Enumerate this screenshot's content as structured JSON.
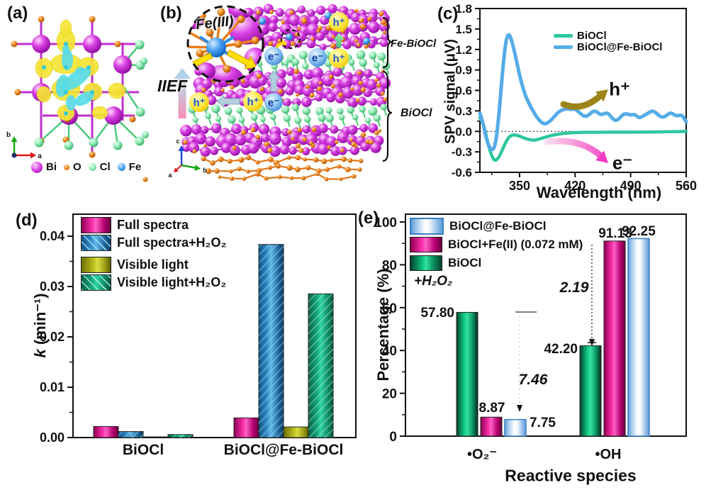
{
  "colors": {
    "bi": "#cc2fd2",
    "o": "#ee7d1a",
    "cl": "#8deab2",
    "fe": "#3f9df0",
    "iso_yellow": "#f4e434",
    "iso_cyan": "#59dbe8",
    "line_green": "#2ec79e",
    "line_blue": "#55ace8",
    "bar_magenta": "#e6007e",
    "bar_blue_hatched": "#2f85c0",
    "bar_olive": "#b9bd1c",
    "bar_teal_hatched": "#17a47c",
    "bar_green": "#10c983",
    "bar_bluewhite": "#5b9fd8"
  },
  "panel_a": {
    "label": "(a)",
    "legend": [
      {
        "name": "Bi"
      },
      {
        "name": "O"
      },
      {
        "name": "Cl"
      },
      {
        "name": "Fe"
      }
    ],
    "axes": {
      "up": "b",
      "right": "a"
    }
  },
  "panel_b": {
    "label": "(b)",
    "inset_label": "Fe(III)",
    "field_label": "IIEF",
    "layers": {
      "top": "Fe-BiOCl",
      "bottom": "BiOCl"
    },
    "carriers": {
      "hole": "h⁺",
      "electron": "e⁻"
    },
    "axes": {
      "up": "c",
      "right": "b",
      "depth": "a"
    }
  },
  "panel_c": {
    "label": "(c)",
    "annotations": {
      "hole": "h⁺",
      "electron": "e⁻"
    }
  },
  "panel_d": {
    "label": "(d)",
    "ylabel_italic": "k",
    "ylabel_rest": " (min⁻¹)"
  },
  "panel_e": {
    "label": "(e)",
    "note": "+H₂O₂",
    "ratio_o2": "7.46",
    "ratio_oh": "2.19"
  },
  "chart_data": [
    {
      "type": "line",
      "panel": "c",
      "xlabel": "Wavelength (nm)",
      "ylabel": "SPV signal (μV)",
      "xlim": [
        300,
        560
      ],
      "ylim": [
        -0.6,
        1.8
      ],
      "xticks": [
        350,
        420,
        490,
        560
      ],
      "yticks": [
        -0.6,
        -0.3,
        0.0,
        0.3,
        0.6,
        0.9,
        1.2,
        1.5,
        1.8
      ],
      "zero_line": true,
      "legend_position": "top-center-inside",
      "series": [
        {
          "name": "BiOCl",
          "color": "#2ec79e",
          "points": [
            [
              300,
              0.2
            ],
            [
              305,
              0.1
            ],
            [
              309,
              -0.12
            ],
            [
              313,
              -0.3
            ],
            [
              317,
              -0.41
            ],
            [
              320,
              -0.43
            ],
            [
              324,
              -0.38
            ],
            [
              328,
              -0.28
            ],
            [
              332,
              -0.17
            ],
            [
              336,
              -0.09
            ],
            [
              340,
              -0.055
            ],
            [
              344,
              -0.05
            ],
            [
              349,
              -0.065
            ],
            [
              354,
              -0.09
            ],
            [
              359,
              -0.11
            ],
            [
              364,
              -0.125
            ],
            [
              368,
              -0.13
            ],
            [
              373,
              -0.12
            ],
            [
              378,
              -0.1
            ],
            [
              384,
              -0.08
            ],
            [
              390,
              -0.06
            ],
            [
              397,
              -0.045
            ],
            [
              405,
              -0.03
            ],
            [
              413,
              -0.022
            ],
            [
              421,
              -0.017
            ],
            [
              430,
              -0.014
            ],
            [
              440,
              -0.013
            ],
            [
              455,
              -0.012
            ],
            [
              470,
              -0.012
            ],
            [
              485,
              -0.012
            ],
            [
              500,
              -0.011
            ],
            [
              515,
              -0.009
            ],
            [
              530,
              -0.007
            ],
            [
              545,
              -0.004
            ],
            [
              560,
              -0.002
            ]
          ]
        },
        {
          "name": "BiOCl@Fe-BiOCl",
          "color": "#55ace8",
          "points": [
            [
              300,
              0.27
            ],
            [
              304,
              0.12
            ],
            [
              307,
              -0.05
            ],
            [
              310,
              -0.18
            ],
            [
              313,
              -0.25
            ],
            [
              316,
              -0.27
            ],
            [
              318,
              -0.24
            ],
            [
              320,
              -0.15
            ],
            [
              322,
              0.02
            ],
            [
              324,
              0.25
            ],
            [
              326,
              0.52
            ],
            [
              328,
              0.8
            ],
            [
              330,
              1.05
            ],
            [
              332,
              1.25
            ],
            [
              334,
              1.38
            ],
            [
              336,
              1.42
            ],
            [
              338,
              1.4
            ],
            [
              340,
              1.33
            ],
            [
              343,
              1.2
            ],
            [
              346,
              1.04
            ],
            [
              349,
              0.88
            ],
            [
              352,
              0.73
            ],
            [
              355,
              0.61
            ],
            [
              358,
              0.51
            ],
            [
              361,
              0.43
            ],
            [
              364,
              0.36
            ],
            [
              367,
              0.3
            ],
            [
              370,
              0.24
            ],
            [
              373,
              0.19
            ],
            [
              376,
              0.15
            ],
            [
              379,
              0.12
            ],
            [
              382,
              0.11
            ],
            [
              385,
              0.12
            ],
            [
              388,
              0.15
            ],
            [
              391,
              0.18
            ],
            [
              394,
              0.22
            ],
            [
              397,
              0.26
            ],
            [
              400,
              0.29
            ],
            [
              403,
              0.31
            ],
            [
              406,
              0.32
            ],
            [
              409,
              0.33
            ],
            [
              412,
              0.33
            ],
            [
              415,
              0.32
            ],
            [
              418,
              0.33
            ],
            [
              421,
              0.32
            ],
            [
              424,
              0.29
            ],
            [
              427,
              0.26
            ],
            [
              430,
              0.23
            ],
            [
              433,
              0.22
            ],
            [
              436,
              0.23
            ],
            [
              439,
              0.26
            ],
            [
              442,
              0.29
            ],
            [
              445,
              0.3
            ],
            [
              448,
              0.28
            ],
            [
              451,
              0.25
            ],
            [
              454,
              0.25
            ],
            [
              457,
              0.26
            ],
            [
              460,
              0.27
            ],
            [
              463,
              0.25
            ],
            [
              466,
              0.2
            ],
            [
              469,
              0.17
            ],
            [
              472,
              0.16
            ],
            [
              475,
              0.18
            ],
            [
              478,
              0.22
            ],
            [
              481,
              0.25
            ],
            [
              484,
              0.26
            ],
            [
              487,
              0.25
            ],
            [
              490,
              0.24
            ],
            [
              493,
              0.25
            ],
            [
              496,
              0.24
            ],
            [
              499,
              0.21
            ],
            [
              502,
              0.2
            ],
            [
              505,
              0.22
            ],
            [
              508,
              0.24
            ],
            [
              511,
              0.26
            ],
            [
              514,
              0.28
            ],
            [
              517,
              0.3
            ],
            [
              520,
              0.29
            ],
            [
              523,
              0.26
            ],
            [
              526,
              0.23
            ],
            [
              529,
              0.21
            ],
            [
              532,
              0.21
            ],
            [
              535,
              0.23
            ],
            [
              538,
              0.26
            ],
            [
              541,
              0.27
            ],
            [
              544,
              0.25
            ],
            [
              547,
              0.23
            ],
            [
              550,
              0.23
            ],
            [
              553,
              0.24
            ],
            [
              556,
              0.22
            ],
            [
              558,
              0.18
            ],
            [
              560,
              0.14
            ]
          ]
        }
      ]
    },
    {
      "type": "bar",
      "panel": "d",
      "categories": [
        "BiOCl",
        "BiOCl@Fe-BiOCl"
      ],
      "ylabel": "k (min⁻¹)",
      "ylim": [
        0,
        0.044
      ],
      "yticks": [
        "0.00",
        "0.01",
        "0.02",
        "0.03",
        "0.04"
      ],
      "legend_position": "top-left-inside",
      "series": [
        {
          "name": "Full spectra",
          "style": "magenta",
          "hatched": false,
          "values": [
            0.0022,
            0.0039
          ]
        },
        {
          "name": "Full spectra+H₂O₂",
          "style": "blue",
          "hatched": true,
          "values": [
            0.0012,
            0.0383
          ]
        },
        {
          "name": "Visible light",
          "style": "olive",
          "hatched": false,
          "values": [
            0.0001,
            0.0021
          ]
        },
        {
          "name": "Visible light+H₂O₂",
          "style": "teal",
          "hatched": true,
          "values": [
            0.0006,
            0.0285
          ]
        }
      ]
    },
    {
      "type": "bar",
      "panel": "e",
      "categories": [
        "•O₂⁻",
        "•OH"
      ],
      "xlabel": "Reactive species",
      "ylabel": "Percentage (%)",
      "ylim": [
        0,
        104
      ],
      "yticks": [
        0,
        20,
        40,
        60,
        80,
        100
      ],
      "legend_position": "top-left-inside",
      "note": "+H₂O₂",
      "series": [
        {
          "name": "BiOCl",
          "style": "greenE",
          "values": [
            57.8,
            42.2
          ],
          "value_labels": [
            "57.80",
            "42.20"
          ]
        },
        {
          "name": "BiOCl+Fe(II) (0.072 mM)",
          "style": "magentaE",
          "values": [
            8.87,
            91.13
          ],
          "value_labels": [
            "8.87",
            "91.13"
          ]
        },
        {
          "name": "BiOCl@Fe-BiOCl",
          "style": "bluewhite",
          "values": [
            7.75,
            92.25
          ],
          "value_labels": [
            "7.75",
            "92.25"
          ]
        }
      ],
      "annotations": [
        {
          "text": "7.46"
        },
        {
          "text": "2.19"
        }
      ]
    }
  ]
}
